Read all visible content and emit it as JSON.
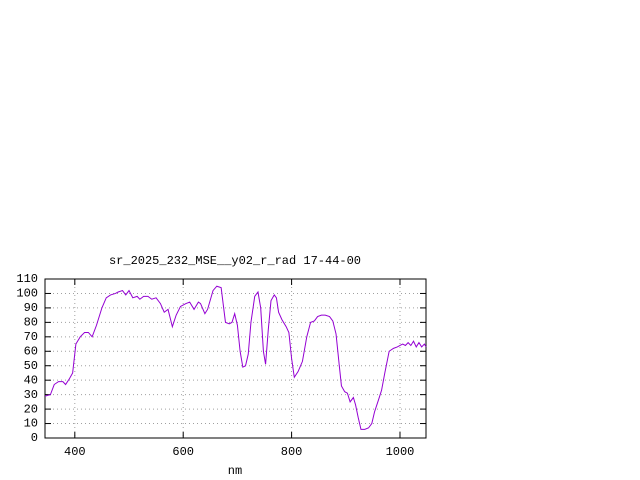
{
  "chart_data": {
    "type": "line",
    "title": "sr_2025_232_MSE__y02_r_rad 17-44-00",
    "x_label": "nm",
    "x": [
      345,
      355,
      362,
      370,
      378,
      383,
      390,
      396,
      402,
      410,
      418,
      425,
      432,
      440,
      450,
      458,
      466,
      475,
      480,
      488,
      494,
      500,
      507,
      515,
      520,
      527,
      535,
      542,
      550,
      558,
      565,
      572,
      580,
      587,
      595,
      605,
      612,
      620,
      628,
      632,
      640,
      645,
      655,
      662,
      670,
      678,
      685,
      690,
      695,
      700,
      705,
      710,
      715,
      720,
      725,
      732,
      738,
      743,
      748,
      752,
      757,
      762,
      768,
      772,
      776,
      782,
      790,
      795,
      800,
      805,
      812,
      820,
      828,
      835,
      842,
      848,
      855,
      862,
      870,
      876,
      882,
      888,
      892,
      898,
      903,
      908,
      914,
      918,
      923,
      928,
      935,
      942,
      948,
      953,
      960,
      966,
      972,
      980,
      988,
      995,
      1000,
      1005,
      1010,
      1015,
      1020,
      1025,
      1030,
      1035,
      1040,
      1045,
      1048
    ],
    "values": [
      29,
      30,
      37,
      39,
      39,
      37,
      41,
      45,
      65,
      70,
      73,
      73,
      70,
      78,
      90,
      97,
      99,
      100,
      101,
      102,
      99,
      102,
      97,
      98,
      96,
      98,
      98,
      96,
      97,
      93,
      87,
      89,
      77,
      85,
      91,
      93,
      94,
      89,
      94,
      93,
      86,
      89,
      102,
      105,
      104,
      80,
      79,
      80,
      86,
      78,
      60,
      49,
      50,
      58,
      80,
      98,
      101,
      90,
      60,
      51,
      75,
      95,
      99,
      97,
      87,
      82,
      77,
      73,
      55,
      42,
      46,
      53,
      70,
      80,
      81,
      84,
      85,
      85,
      84,
      81,
      72,
      50,
      36,
      32,
      31,
      25,
      28,
      23,
      14,
      6,
      6,
      7,
      10,
      18,
      26,
      33,
      45,
      60,
      62,
      63,
      64,
      65,
      64,
      66,
      64,
      67,
      63,
      66,
      63,
      65,
      63
    ],
    "color": "#9400d3",
    "xlim": [
      345,
      1048
    ],
    "ylim": [
      0,
      110
    ],
    "xticks": [
      400,
      600,
      800,
      1000
    ],
    "yticks": [
      0,
      10,
      20,
      30,
      40,
      50,
      60,
      70,
      80,
      90,
      100,
      110
    ],
    "grid": true
  }
}
